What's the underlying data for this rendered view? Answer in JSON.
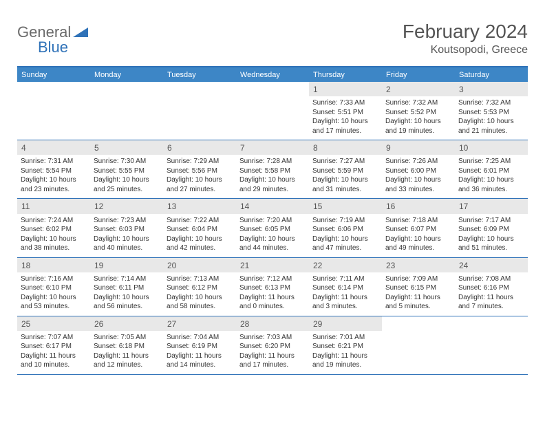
{
  "logo": {
    "text1": "General",
    "text2": "Blue",
    "shape_color": "#2f72b8"
  },
  "header": {
    "month_title": "February 2024",
    "location": "Koutsopodi, Greece"
  },
  "colors": {
    "header_bar": "#3d86c6",
    "border": "#2f72b8",
    "daynum_bg": "#e8e8e8",
    "text_primary": "#333333",
    "text_muted": "#555555",
    "text_header": "#545454"
  },
  "weekdays": [
    "Sunday",
    "Monday",
    "Tuesday",
    "Wednesday",
    "Thursday",
    "Friday",
    "Saturday"
  ],
  "weeks": [
    [
      {
        "empty": true
      },
      {
        "empty": true
      },
      {
        "empty": true
      },
      {
        "empty": true
      },
      {
        "day": "1",
        "sunrise": "Sunrise: 7:33 AM",
        "sunset": "Sunset: 5:51 PM",
        "daylight1": "Daylight: 10 hours",
        "daylight2": "and 17 minutes."
      },
      {
        "day": "2",
        "sunrise": "Sunrise: 7:32 AM",
        "sunset": "Sunset: 5:52 PM",
        "daylight1": "Daylight: 10 hours",
        "daylight2": "and 19 minutes."
      },
      {
        "day": "3",
        "sunrise": "Sunrise: 7:32 AM",
        "sunset": "Sunset: 5:53 PM",
        "daylight1": "Daylight: 10 hours",
        "daylight2": "and 21 minutes."
      }
    ],
    [
      {
        "day": "4",
        "sunrise": "Sunrise: 7:31 AM",
        "sunset": "Sunset: 5:54 PM",
        "daylight1": "Daylight: 10 hours",
        "daylight2": "and 23 minutes."
      },
      {
        "day": "5",
        "sunrise": "Sunrise: 7:30 AM",
        "sunset": "Sunset: 5:55 PM",
        "daylight1": "Daylight: 10 hours",
        "daylight2": "and 25 minutes."
      },
      {
        "day": "6",
        "sunrise": "Sunrise: 7:29 AM",
        "sunset": "Sunset: 5:56 PM",
        "daylight1": "Daylight: 10 hours",
        "daylight2": "and 27 minutes."
      },
      {
        "day": "7",
        "sunrise": "Sunrise: 7:28 AM",
        "sunset": "Sunset: 5:58 PM",
        "daylight1": "Daylight: 10 hours",
        "daylight2": "and 29 minutes."
      },
      {
        "day": "8",
        "sunrise": "Sunrise: 7:27 AM",
        "sunset": "Sunset: 5:59 PM",
        "daylight1": "Daylight: 10 hours",
        "daylight2": "and 31 minutes."
      },
      {
        "day": "9",
        "sunrise": "Sunrise: 7:26 AM",
        "sunset": "Sunset: 6:00 PM",
        "daylight1": "Daylight: 10 hours",
        "daylight2": "and 33 minutes."
      },
      {
        "day": "10",
        "sunrise": "Sunrise: 7:25 AM",
        "sunset": "Sunset: 6:01 PM",
        "daylight1": "Daylight: 10 hours",
        "daylight2": "and 36 minutes."
      }
    ],
    [
      {
        "day": "11",
        "sunrise": "Sunrise: 7:24 AM",
        "sunset": "Sunset: 6:02 PM",
        "daylight1": "Daylight: 10 hours",
        "daylight2": "and 38 minutes."
      },
      {
        "day": "12",
        "sunrise": "Sunrise: 7:23 AM",
        "sunset": "Sunset: 6:03 PM",
        "daylight1": "Daylight: 10 hours",
        "daylight2": "and 40 minutes."
      },
      {
        "day": "13",
        "sunrise": "Sunrise: 7:22 AM",
        "sunset": "Sunset: 6:04 PM",
        "daylight1": "Daylight: 10 hours",
        "daylight2": "and 42 minutes."
      },
      {
        "day": "14",
        "sunrise": "Sunrise: 7:20 AM",
        "sunset": "Sunset: 6:05 PM",
        "daylight1": "Daylight: 10 hours",
        "daylight2": "and 44 minutes."
      },
      {
        "day": "15",
        "sunrise": "Sunrise: 7:19 AM",
        "sunset": "Sunset: 6:06 PM",
        "daylight1": "Daylight: 10 hours",
        "daylight2": "and 47 minutes."
      },
      {
        "day": "16",
        "sunrise": "Sunrise: 7:18 AM",
        "sunset": "Sunset: 6:07 PM",
        "daylight1": "Daylight: 10 hours",
        "daylight2": "and 49 minutes."
      },
      {
        "day": "17",
        "sunrise": "Sunrise: 7:17 AM",
        "sunset": "Sunset: 6:09 PM",
        "daylight1": "Daylight: 10 hours",
        "daylight2": "and 51 minutes."
      }
    ],
    [
      {
        "day": "18",
        "sunrise": "Sunrise: 7:16 AM",
        "sunset": "Sunset: 6:10 PM",
        "daylight1": "Daylight: 10 hours",
        "daylight2": "and 53 minutes."
      },
      {
        "day": "19",
        "sunrise": "Sunrise: 7:14 AM",
        "sunset": "Sunset: 6:11 PM",
        "daylight1": "Daylight: 10 hours",
        "daylight2": "and 56 minutes."
      },
      {
        "day": "20",
        "sunrise": "Sunrise: 7:13 AM",
        "sunset": "Sunset: 6:12 PM",
        "daylight1": "Daylight: 10 hours",
        "daylight2": "and 58 minutes."
      },
      {
        "day": "21",
        "sunrise": "Sunrise: 7:12 AM",
        "sunset": "Sunset: 6:13 PM",
        "daylight1": "Daylight: 11 hours",
        "daylight2": "and 0 minutes."
      },
      {
        "day": "22",
        "sunrise": "Sunrise: 7:11 AM",
        "sunset": "Sunset: 6:14 PM",
        "daylight1": "Daylight: 11 hours",
        "daylight2": "and 3 minutes."
      },
      {
        "day": "23",
        "sunrise": "Sunrise: 7:09 AM",
        "sunset": "Sunset: 6:15 PM",
        "daylight1": "Daylight: 11 hours",
        "daylight2": "and 5 minutes."
      },
      {
        "day": "24",
        "sunrise": "Sunrise: 7:08 AM",
        "sunset": "Sunset: 6:16 PM",
        "daylight1": "Daylight: 11 hours",
        "daylight2": "and 7 minutes."
      }
    ],
    [
      {
        "day": "25",
        "sunrise": "Sunrise: 7:07 AM",
        "sunset": "Sunset: 6:17 PM",
        "daylight1": "Daylight: 11 hours",
        "daylight2": "and 10 minutes."
      },
      {
        "day": "26",
        "sunrise": "Sunrise: 7:05 AM",
        "sunset": "Sunset: 6:18 PM",
        "daylight1": "Daylight: 11 hours",
        "daylight2": "and 12 minutes."
      },
      {
        "day": "27",
        "sunrise": "Sunrise: 7:04 AM",
        "sunset": "Sunset: 6:19 PM",
        "daylight1": "Daylight: 11 hours",
        "daylight2": "and 14 minutes."
      },
      {
        "day": "28",
        "sunrise": "Sunrise: 7:03 AM",
        "sunset": "Sunset: 6:20 PM",
        "daylight1": "Daylight: 11 hours",
        "daylight2": "and 17 minutes."
      },
      {
        "day": "29",
        "sunrise": "Sunrise: 7:01 AM",
        "sunset": "Sunset: 6:21 PM",
        "daylight1": "Daylight: 11 hours",
        "daylight2": "and 19 minutes."
      },
      {
        "empty": true
      },
      {
        "empty": true
      }
    ]
  ]
}
